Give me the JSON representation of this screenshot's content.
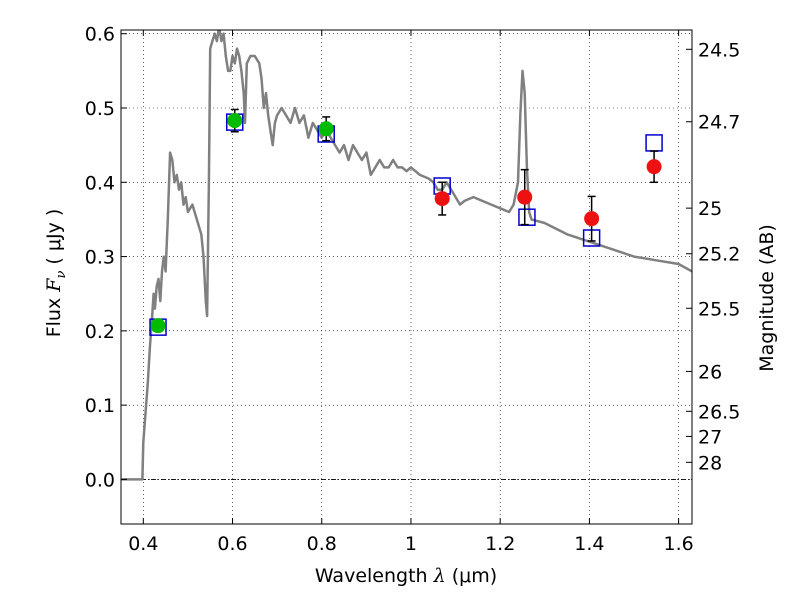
{
  "chart_data": {
    "type": "scatter",
    "xlabel": {
      "text": "Wavelength",
      "symbol": "λ",
      "unit": "(μm)"
    },
    "ylabel": {
      "text": "Flux",
      "symbol": "F",
      "subscript": "ν",
      "open_paren": "(",
      "unit": "μJy",
      "close_paren": ")"
    },
    "y2label": "Magnitude (AB)",
    "xlim": [
      0.35,
      1.63
    ],
    "ylim": [
      -0.06,
      0.605
    ],
    "x_ticks": [
      0.4,
      0.6,
      0.8,
      1.0,
      1.2,
      1.4,
      1.6
    ],
    "x_tick_labels": [
      "0.4",
      "0.6",
      "0.8",
      "1",
      "1.2",
      "1.4",
      "1.6"
    ],
    "y_ticks": [
      0.0,
      0.1,
      0.2,
      0.3,
      0.4,
      0.5,
      0.6
    ],
    "y_tick_labels": [
      "0.0",
      "0.1",
      "0.2",
      "0.3",
      "0.4",
      "0.5",
      "0.6"
    ],
    "y2_ticks": [
      {
        "label": "24.5",
        "flux": 0.579
      },
      {
        "label": "24.7",
        "flux": 0.4815
      },
      {
        "label": "25",
        "flux": 0.3652
      },
      {
        "label": "25.2",
        "flux": 0.3038
      },
      {
        "label": "25.5",
        "flux": 0.2304
      },
      {
        "label": "26",
        "flux": 0.1454
      },
      {
        "label": "26.5",
        "flux": 0.0917
      },
      {
        "label": "27",
        "flux": 0.0579
      },
      {
        "label": "28",
        "flux": 0.023
      }
    ],
    "grid": true,
    "zero_line": true,
    "colors": {
      "sed": "#808080",
      "green": "#00bb00",
      "red": "#ee1111",
      "model_box": "#0000cc",
      "errorbar": "#000000"
    },
    "series": [
      {
        "name": "model SED",
        "kind": "line",
        "points": [
          [
            0.35,
            0.0
          ],
          [
            0.398,
            0.0
          ],
          [
            0.4,
            0.05
          ],
          [
            0.41,
            0.13
          ],
          [
            0.415,
            0.18
          ],
          [
            0.42,
            0.22
          ],
          [
            0.423,
            0.25
          ],
          [
            0.426,
            0.23
          ],
          [
            0.43,
            0.26
          ],
          [
            0.434,
            0.27
          ],
          [
            0.438,
            0.24
          ],
          [
            0.442,
            0.28
          ],
          [
            0.446,
            0.3
          ],
          [
            0.45,
            0.28
          ],
          [
            0.455,
            0.35
          ],
          [
            0.46,
            0.44
          ],
          [
            0.465,
            0.43
          ],
          [
            0.47,
            0.4
          ],
          [
            0.475,
            0.41
          ],
          [
            0.48,
            0.39
          ],
          [
            0.485,
            0.4
          ],
          [
            0.49,
            0.37
          ],
          [
            0.495,
            0.38
          ],
          [
            0.5,
            0.36
          ],
          [
            0.51,
            0.37
          ],
          [
            0.52,
            0.35
          ],
          [
            0.53,
            0.33
          ],
          [
            0.535,
            0.3
          ],
          [
            0.54,
            0.24
          ],
          [
            0.543,
            0.22
          ],
          [
            0.547,
            0.4
          ],
          [
            0.55,
            0.58
          ],
          [
            0.555,
            0.59
          ],
          [
            0.56,
            0.6
          ],
          [
            0.565,
            0.59
          ],
          [
            0.57,
            0.61
          ],
          [
            0.575,
            0.59
          ],
          [
            0.58,
            0.6
          ],
          [
            0.585,
            0.57
          ],
          [
            0.59,
            0.55
          ],
          [
            0.595,
            0.55
          ],
          [
            0.6,
            0.57
          ],
          [
            0.605,
            0.56
          ],
          [
            0.61,
            0.58
          ],
          [
            0.615,
            0.57
          ],
          [
            0.62,
            0.55
          ],
          [
            0.625,
            0.52
          ],
          [
            0.628,
            0.48
          ],
          [
            0.632,
            0.56
          ],
          [
            0.64,
            0.57
          ],
          [
            0.65,
            0.57
          ],
          [
            0.66,
            0.56
          ],
          [
            0.665,
            0.54
          ],
          [
            0.67,
            0.5
          ],
          [
            0.675,
            0.52
          ],
          [
            0.68,
            0.49
          ],
          [
            0.685,
            0.47
          ],
          [
            0.69,
            0.45
          ],
          [
            0.695,
            0.48
          ],
          [
            0.7,
            0.49
          ],
          [
            0.71,
            0.5
          ],
          [
            0.72,
            0.49
          ],
          [
            0.73,
            0.48
          ],
          [
            0.74,
            0.5
          ],
          [
            0.75,
            0.48
          ],
          [
            0.76,
            0.49
          ],
          [
            0.77,
            0.46
          ],
          [
            0.78,
            0.48
          ],
          [
            0.79,
            0.47
          ],
          [
            0.8,
            0.46
          ],
          [
            0.81,
            0.47
          ],
          [
            0.82,
            0.46
          ],
          [
            0.83,
            0.45
          ],
          [
            0.84,
            0.44
          ],
          [
            0.85,
            0.45
          ],
          [
            0.86,
            0.43
          ],
          [
            0.87,
            0.45
          ],
          [
            0.88,
            0.44
          ],
          [
            0.89,
            0.43
          ],
          [
            0.9,
            0.44
          ],
          [
            0.91,
            0.41
          ],
          [
            0.92,
            0.42
          ],
          [
            0.93,
            0.43
          ],
          [
            0.94,
            0.42
          ],
          [
            0.95,
            0.42
          ],
          [
            0.96,
            0.43
          ],
          [
            0.97,
            0.42
          ],
          [
            0.98,
            0.42
          ],
          [
            0.99,
            0.415
          ],
          [
            1.0,
            0.42
          ],
          [
            1.02,
            0.41
          ],
          [
            1.04,
            0.405
          ],
          [
            1.05,
            0.4
          ],
          [
            1.06,
            0.39
          ],
          [
            1.07,
            0.39
          ],
          [
            1.08,
            0.4
          ],
          [
            1.09,
            0.39
          ],
          [
            1.1,
            0.38
          ],
          [
            1.11,
            0.37
          ],
          [
            1.12,
            0.375
          ],
          [
            1.14,
            0.38
          ],
          [
            1.16,
            0.375
          ],
          [
            1.18,
            0.37
          ],
          [
            1.2,
            0.365
          ],
          [
            1.22,
            0.36
          ],
          [
            1.23,
            0.37
          ],
          [
            1.24,
            0.4
          ],
          [
            1.245,
            0.49
          ],
          [
            1.25,
            0.55
          ],
          [
            1.255,
            0.52
          ],
          [
            1.26,
            0.42
          ],
          [
            1.265,
            0.36
          ],
          [
            1.27,
            0.35
          ],
          [
            1.3,
            0.345
          ],
          [
            1.35,
            0.33
          ],
          [
            1.4,
            0.32
          ],
          [
            1.45,
            0.31
          ],
          [
            1.5,
            0.3
          ],
          [
            1.55,
            0.295
          ],
          [
            1.6,
            0.29
          ],
          [
            1.63,
            0.28
          ]
        ]
      },
      {
        "name": "observed (green)",
        "kind": "markers",
        "points": [
          {
            "x": 0.433,
            "y": 0.207,
            "err": 0.005
          },
          {
            "x": 0.605,
            "y": 0.483,
            "err": 0.015
          },
          {
            "x": 0.81,
            "y": 0.472,
            "err": 0.016
          }
        ]
      },
      {
        "name": "observed (red)",
        "kind": "markers",
        "points": [
          {
            "x": 1.07,
            "y": 0.378,
            "err": 0.022
          },
          {
            "x": 1.255,
            "y": 0.38,
            "err": 0.037
          },
          {
            "x": 1.405,
            "y": 0.351,
            "err": 0.03
          },
          {
            "x": 1.545,
            "y": 0.421,
            "err": 0.021
          }
        ]
      },
      {
        "name": "model photometry",
        "kind": "open-squares",
        "points": [
          {
            "x": 0.433,
            "y": 0.205
          },
          {
            "x": 0.605,
            "y": 0.481
          },
          {
            "x": 0.81,
            "y": 0.465
          },
          {
            "x": 1.07,
            "y": 0.395
          },
          {
            "x": 1.26,
            "y": 0.353
          },
          {
            "x": 1.405,
            "y": 0.325
          },
          {
            "x": 1.545,
            "y": 0.453
          }
        ]
      }
    ]
  }
}
